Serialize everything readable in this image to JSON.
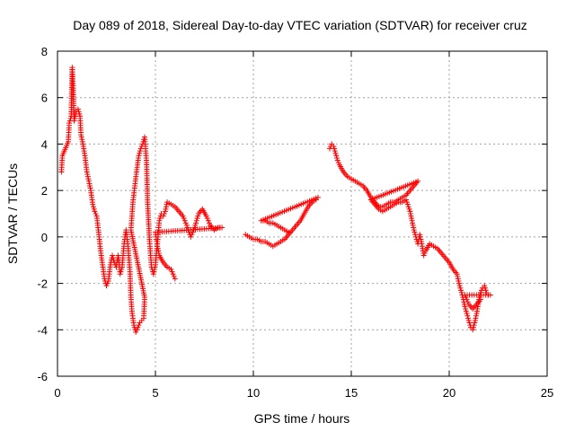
{
  "chart_data": {
    "type": "scatter",
    "title": "Day 089 of 2018, Sidereal Day-to-day VTEC variation (SDTVAR) for receiver cruz",
    "xlabel": "GPS time / hours",
    "ylabel": "SDTVAR / TECUs",
    "xlim": [
      0,
      25
    ],
    "ylim": [
      -6,
      8
    ],
    "xticks": [
      0,
      5,
      10,
      15,
      20,
      25
    ],
    "yticks": [
      -6,
      -4,
      -2,
      0,
      2,
      4,
      6,
      8
    ],
    "grid": true,
    "marker": "+",
    "color": "#ff0000",
    "series": [
      {
        "name": "SDTVAR",
        "segments": [
          [
            [
              0.2,
              2.8
            ],
            [
              0.25,
              3.5
            ],
            [
              0.55,
              4.1
            ],
            [
              0.6,
              4.9
            ],
            [
              0.7,
              5.2
            ],
            [
              0.75,
              7.3
            ],
            [
              0.8,
              6.5
            ],
            [
              0.85,
              5.0
            ],
            [
              0.95,
              5.4
            ],
            [
              1.05,
              5.5
            ],
            [
              1.15,
              5.2
            ],
            [
              1.2,
              4.4
            ],
            [
              1.3,
              4.0
            ],
            [
              1.4,
              3.5
            ],
            [
              1.5,
              2.8
            ],
            [
              1.6,
              2.4
            ],
            [
              1.7,
              2.0
            ],
            [
              1.8,
              1.4
            ],
            [
              1.9,
              1.1
            ],
            [
              2.0,
              0.9
            ],
            [
              2.1,
              0.2
            ],
            [
              2.2,
              -0.6
            ],
            [
              2.3,
              -1.2
            ],
            [
              2.4,
              -1.8
            ],
            [
              2.5,
              -2.1
            ],
            [
              2.6,
              -1.9
            ],
            [
              2.7,
              -1.2
            ],
            [
              2.8,
              -0.8
            ],
            [
              2.9,
              -1.1
            ],
            [
              3.0,
              -1.3
            ],
            [
              3.1,
              -0.8
            ],
            [
              3.2,
              -1.6
            ],
            [
              3.3,
              -1.3
            ],
            [
              3.4,
              -0.3
            ],
            [
              3.5,
              0.3
            ],
            [
              3.6,
              -0.4
            ],
            [
              3.7,
              -1.5
            ],
            [
              3.75,
              -2.6
            ],
            [
              3.8,
              -3.2
            ],
            [
              3.9,
              -3.8
            ],
            [
              4.0,
              -4.1
            ],
            [
              4.1,
              -3.9
            ],
            [
              4.2,
              -3.7
            ],
            [
              4.3,
              -3.6
            ],
            [
              4.4,
              -3.5
            ],
            [
              4.45,
              -2.6
            ],
            [
              3.75,
              0.3
            ],
            [
              3.85,
              1.5
            ],
            [
              3.95,
              2.2
            ],
            [
              4.05,
              2.9
            ],
            [
              4.15,
              3.5
            ],
            [
              4.25,
              3.8
            ],
            [
              4.35,
              4.0
            ],
            [
              4.45,
              4.3
            ],
            [
              4.55,
              3.2
            ],
            [
              4.6,
              1.5
            ],
            [
              4.7,
              -0.2
            ],
            [
              4.8,
              -1.3
            ],
            [
              4.9,
              -1.6
            ],
            [
              5.0,
              -1.2
            ],
            [
              5.1,
              -0.3
            ],
            [
              5.2,
              0.7
            ],
            [
              5.3,
              1.0
            ],
            [
              5.4,
              0.9
            ],
            [
              5.5,
              1.1
            ],
            [
              5.6,
              1.5
            ],
            [
              5.8,
              1.4
            ],
            [
              6.0,
              1.3
            ],
            [
              6.2,
              1.1
            ],
            [
              6.4,
              0.9
            ],
            [
              6.6,
              0.5
            ],
            [
              6.8,
              0.0
            ],
            [
              7.0,
              0.4
            ],
            [
              7.2,
              1.0
            ],
            [
              7.4,
              1.2
            ],
            [
              7.6,
              0.9
            ],
            [
              7.8,
              0.5
            ],
            [
              8.0,
              0.3
            ],
            [
              8.2,
              0.4
            ],
            [
              8.4,
              0.4
            ],
            [
              5.0,
              0.2
            ],
            [
              5.1,
              -0.4
            ],
            [
              5.2,
              -0.8
            ],
            [
              5.4,
              -1.1
            ],
            [
              5.6,
              -1.3
            ],
            [
              5.8,
              -1.4
            ],
            [
              6.0,
              -1.8
            ]
          ],
          [
            [
              9.6,
              0.1
            ],
            [
              9.8,
              0.0
            ],
            [
              10.0,
              -0.1
            ],
            [
              10.2,
              -0.1
            ],
            [
              10.4,
              -0.2
            ],
            [
              10.6,
              -0.2
            ],
            [
              10.8,
              -0.3
            ],
            [
              11.0,
              -0.4
            ],
            [
              11.2,
              -0.3
            ],
            [
              11.4,
              -0.2
            ],
            [
              11.6,
              -0.1
            ],
            [
              11.8,
              0.1
            ],
            [
              12.0,
              0.3
            ],
            [
              12.2,
              0.5
            ],
            [
              12.4,
              0.7
            ],
            [
              12.6,
              1.0
            ],
            [
              12.8,
              1.3
            ],
            [
              13.0,
              1.5
            ],
            [
              13.2,
              1.6
            ],
            [
              13.3,
              1.7
            ],
            [
              10.4,
              0.7
            ],
            [
              10.6,
              0.7
            ],
            [
              10.8,
              0.6
            ],
            [
              11.0,
              0.6
            ],
            [
              11.2,
              0.5
            ],
            [
              11.4,
              0.4
            ],
            [
              11.6,
              0.3
            ],
            [
              11.8,
              0.2
            ]
          ],
          [
            [
              13.9,
              3.8
            ],
            [
              14.0,
              4.0
            ],
            [
              14.1,
              3.9
            ],
            [
              14.2,
              3.6
            ],
            [
              14.3,
              3.3
            ],
            [
              14.4,
              3.1
            ],
            [
              14.6,
              2.8
            ],
            [
              14.8,
              2.6
            ],
            [
              15.0,
              2.5
            ],
            [
              15.2,
              2.4
            ],
            [
              15.4,
              2.3
            ],
            [
              15.6,
              2.2
            ],
            [
              15.8,
              2.0
            ],
            [
              16.0,
              1.7
            ],
            [
              16.2,
              1.5
            ],
            [
              16.4,
              1.3
            ],
            [
              16.6,
              1.3
            ],
            [
              16.8,
              1.4
            ],
            [
              17.0,
              1.5
            ],
            [
              17.2,
              1.5
            ],
            [
              17.4,
              1.6
            ],
            [
              17.6,
              1.7
            ],
            [
              17.8,
              1.8
            ],
            [
              18.0,
              2.0
            ],
            [
              18.2,
              2.2
            ],
            [
              18.4,
              2.4
            ],
            [
              16.0,
              1.6
            ],
            [
              16.2,
              1.4
            ],
            [
              16.4,
              1.2
            ],
            [
              16.6,
              1.1
            ],
            [
              16.8,
              1.2
            ],
            [
              17.0,
              1.3
            ],
            [
              17.2,
              1.4
            ],
            [
              17.4,
              1.5
            ],
            [
              17.6,
              1.5
            ],
            [
              17.8,
              1.6
            ],
            [
              18.0,
              1.1
            ],
            [
              18.1,
              0.7
            ],
            [
              18.2,
              0.3
            ],
            [
              18.3,
              0.0
            ],
            [
              18.4,
              -0.3
            ],
            [
              18.5,
              0.1
            ],
            [
              18.6,
              -0.3
            ],
            [
              18.7,
              -0.8
            ],
            [
              18.8,
              -0.6
            ],
            [
              19.0,
              -0.3
            ],
            [
              19.2,
              -0.4
            ],
            [
              19.4,
              -0.5
            ],
            [
              19.6,
              -0.7
            ],
            [
              19.8,
              -0.9
            ],
            [
              20.0,
              -1.1
            ],
            [
              20.2,
              -1.4
            ],
            [
              20.4,
              -1.6
            ],
            [
              20.5,
              -2.0
            ],
            [
              20.6,
              -2.3
            ],
            [
              20.7,
              -2.6
            ],
            [
              20.8,
              -3.0
            ],
            [
              20.9,
              -3.3
            ],
            [
              21.0,
              -3.6
            ],
            [
              21.1,
              -3.9
            ],
            [
              21.2,
              -4.0
            ],
            [
              21.3,
              -3.7
            ],
            [
              21.4,
              -3.3
            ],
            [
              21.5,
              -2.8
            ],
            [
              21.6,
              -2.4
            ],
            [
              21.7,
              -2.2
            ],
            [
              21.8,
              -2.1
            ],
            [
              21.9,
              -2.4
            ],
            [
              22.0,
              -2.5
            ],
            [
              22.1,
              -2.5
            ],
            [
              20.8,
              -2.5
            ],
            [
              21.0,
              -2.9
            ],
            [
              21.2,
              -3.1
            ],
            [
              21.4,
              -2.9
            ],
            [
              21.6,
              -2.7
            ]
          ]
        ]
      }
    ]
  }
}
